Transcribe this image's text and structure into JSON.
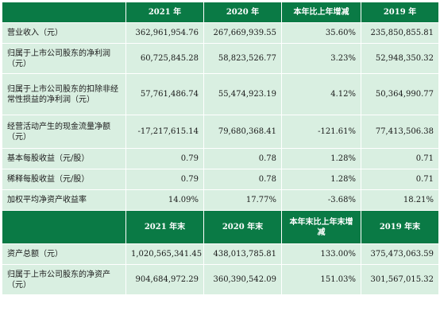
{
  "header1": [
    "",
    "2021 年",
    "2020 年",
    "本年比上年增减",
    "2019 年"
  ],
  "rows1": [
    {
      "label": "营业收入（元）",
      "v2021": "362,961,954.76",
      "v2020": "267,669,939.55",
      "change": "35.60%",
      "v2019": "235,850,855.81"
    },
    {
      "label": "归属于上市公司股东的净利润（元）",
      "v2021": "60,725,845.28",
      "v2020": "58,823,526.77",
      "change": "3.23%",
      "v2019": "52,948,350.32"
    },
    {
      "label": "归属于上市公司股东的扣除非经常性损益的净利润（元）",
      "v2021": "57,761,486.74",
      "v2020": "55,474,923.19",
      "change": "4.12%",
      "v2019": "50,364,990.77"
    },
    {
      "label": "经营活动产生的现金流量净额（元）",
      "v2021": "-17,217,615.14",
      "v2020": "79,680,368.41",
      "change": "-121.61%",
      "v2019": "77,413,506.38"
    },
    {
      "label": "基本每股收益（元/股）",
      "v2021": "0.79",
      "v2020": "0.78",
      "change": "1.28%",
      "v2019": "0.71"
    },
    {
      "label": "稀释每股收益（元/股）",
      "v2021": "0.79",
      "v2020": "0.78",
      "change": "1.28%",
      "v2019": "0.71"
    },
    {
      "label": "加权平均净资产收益率",
      "v2021": "14.09%",
      "v2020": "17.77%",
      "change": "-3.68%",
      "v2019": "18.21%"
    }
  ],
  "header2": [
    "",
    "2021 年末",
    "2020 年末",
    "本年末比上年末增减",
    "2019 年末"
  ],
  "rows2": [
    {
      "label": "资产总额（元）",
      "v2021": "1,020,565,341.45",
      "v2020": "438,013,785.81",
      "change": "133.00%",
      "v2019": "375,473,063.59"
    },
    {
      "label": "归属于上市公司股东的净资产（元）",
      "v2021": "904,684,972.29",
      "v2020": "360,390,542.09",
      "change": "151.03%",
      "v2019": "301,567,015.32"
    }
  ]
}
